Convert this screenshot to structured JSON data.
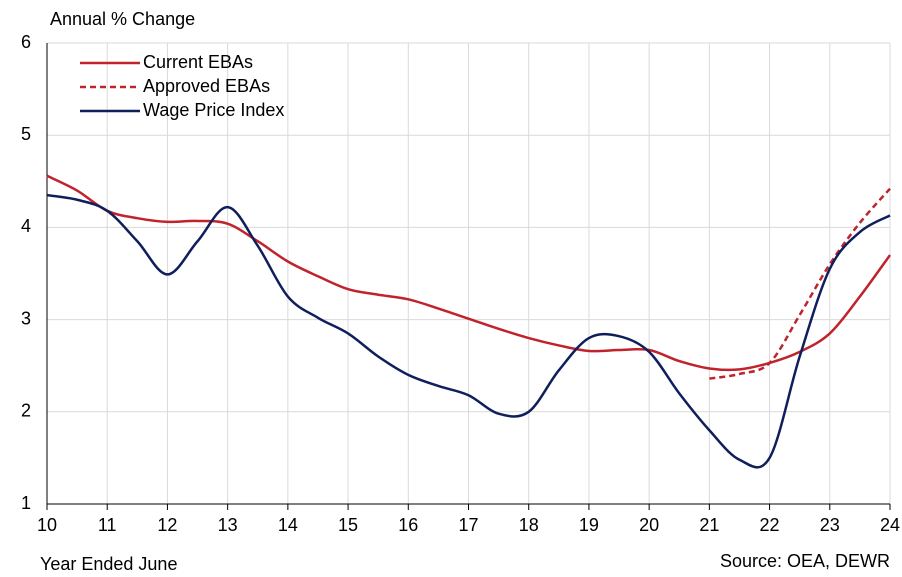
{
  "chart_data": {
    "type": "line",
    "y_label": "Annual % Change",
    "x_label": "Year Ended June",
    "source": "Source: OEA, DEWR",
    "xlim": [
      10,
      24
    ],
    "xticks": [
      10,
      11,
      12,
      13,
      14,
      15,
      16,
      17,
      18,
      19,
      20,
      21,
      22,
      23,
      24
    ],
    "ylim": [
      1,
      6
    ],
    "yticks": [
      1,
      2,
      3,
      4,
      5,
      6
    ],
    "grid": true,
    "legend": "top-left",
    "series": [
      {
        "name": "Current EBAs",
        "color": "#c0232c",
        "dash": false,
        "x": [
          10,
          10.5,
          11,
          11.5,
          12,
          12.5,
          13,
          13.5,
          14,
          14.5,
          15,
          15.5,
          16,
          16.5,
          17,
          17.5,
          18,
          18.5,
          19,
          19.5,
          20,
          20.5,
          21,
          21.5,
          22,
          22.5,
          23,
          23.5,
          24
        ],
        "values": [
          4.56,
          4.4,
          4.18,
          4.1,
          4.06,
          4.07,
          4.04,
          3.85,
          3.63,
          3.47,
          3.33,
          3.27,
          3.22,
          3.12,
          3.01,
          2.9,
          2.8,
          2.72,
          2.66,
          2.67,
          2.67,
          2.55,
          2.47,
          2.46,
          2.53,
          2.65,
          2.85,
          3.25,
          3.7
        ]
      },
      {
        "name": "Approved EBAs",
        "color": "#c0232c",
        "dash": true,
        "x": [
          21,
          21.5,
          22,
          22.5,
          23,
          23.5,
          24
        ],
        "values": [
          2.36,
          2.41,
          2.53,
          3.05,
          3.6,
          4.05,
          4.42
        ]
      },
      {
        "name": "Wage Price Index",
        "color": "#0f1f5c",
        "dash": false,
        "x": [
          10,
          10.5,
          11,
          11.5,
          12,
          12.5,
          13,
          13.5,
          14,
          14.5,
          15,
          15.5,
          16,
          16.5,
          17,
          17.5,
          18,
          18.5,
          19,
          19.5,
          20,
          20.5,
          21,
          21.5,
          22,
          22.5,
          23,
          23.5,
          24
        ],
        "values": [
          4.35,
          4.3,
          4.18,
          3.85,
          3.49,
          3.85,
          4.22,
          3.8,
          3.25,
          3.02,
          2.85,
          2.6,
          2.4,
          2.28,
          2.18,
          1.98,
          2.0,
          2.45,
          2.8,
          2.82,
          2.65,
          2.2,
          1.8,
          1.48,
          1.5,
          2.6,
          3.55,
          3.95,
          4.13
        ]
      }
    ]
  }
}
